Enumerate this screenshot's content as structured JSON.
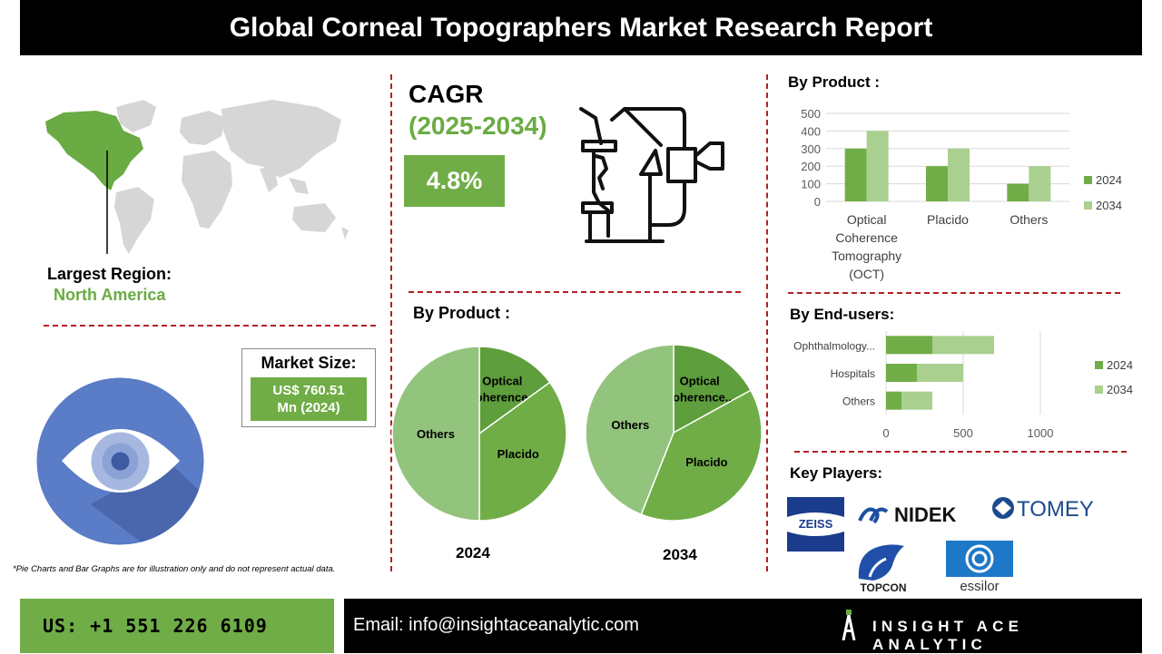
{
  "header": {
    "title": "Global Corneal Topographers Market Research Report"
  },
  "region": {
    "label": "Largest Region:",
    "value": "North America"
  },
  "cagr": {
    "label": "CAGR",
    "period": "(2025-2034)",
    "value": "4.8%"
  },
  "market_size": {
    "label": "Market Size:",
    "value_line1": "US$ 760.51",
    "value_line2": "Mn (2024)"
  },
  "pie_section": {
    "title": "By Product :",
    "year_left": "2024",
    "year_right": "2034"
  },
  "bar_product": {
    "title": "By Product :"
  },
  "bar_endusers": {
    "title": "By End-users:"
  },
  "key_players": {
    "title": "Key Players:",
    "logos": [
      "ZEISS",
      "NIDEK",
      "TOMEY",
      "TOPCON",
      "essilor"
    ]
  },
  "note": "*Pie Charts and Bar Graphs are for illustration only and do not represent actual data.",
  "footer": {
    "phone": "US: +1 551 226 6109",
    "email": "Email: info@insightaceanalytic.com",
    "brand": "INSIGHT ACE ANALYTIC"
  },
  "colors": {
    "dark_green": "#5e9e3c",
    "mid_green": "#70ad47",
    "light_green": "#a9d08e",
    "pie_light": "#93c47d",
    "accent_red": "#b32025"
  },
  "chart_data": [
    {
      "type": "bar",
      "title": "By Product :",
      "categories": [
        "Optical Coherence Tomography (OCT)",
        "Placido",
        "Others"
      ],
      "category_lines": [
        [
          "Optical",
          "Coherence",
          "Tomography",
          "(OCT)"
        ],
        [
          "Placido"
        ],
        [
          "Others"
        ]
      ],
      "series": [
        {
          "name": "2024",
          "values": [
            300,
            200,
            100
          ]
        },
        {
          "name": "2034",
          "values": [
            400,
            300,
            200
          ]
        }
      ],
      "ylim": [
        0,
        500
      ],
      "yticks": [
        "0",
        "100",
        "200",
        "300",
        "400",
        "500"
      ],
      "legend": "right",
      "grid": true
    },
    {
      "type": "bar",
      "orientation": "horizontal",
      "title": "By End-users:",
      "categories": [
        "Ophthalmology...",
        "Hospitals",
        "Others"
      ],
      "series": [
        {
          "name": "2024",
          "values": [
            300,
            200,
            100
          ]
        },
        {
          "name": "2034",
          "values": [
            400,
            300,
            200
          ]
        }
      ],
      "xlim": [
        0,
        1000
      ],
      "xticks": [
        "0",
        "500",
        "1000"
      ],
      "legend": "right",
      "grid": true
    },
    {
      "type": "pie",
      "year": "2024",
      "labels": [
        "Optical Coherence...",
        "Placido",
        "Others"
      ],
      "values": [
        15,
        35,
        50
      ]
    },
    {
      "type": "pie",
      "year": "2034",
      "labels": [
        "Optical Coherence...",
        "Placido",
        "Others"
      ],
      "values": [
        17,
        39,
        44
      ]
    }
  ]
}
